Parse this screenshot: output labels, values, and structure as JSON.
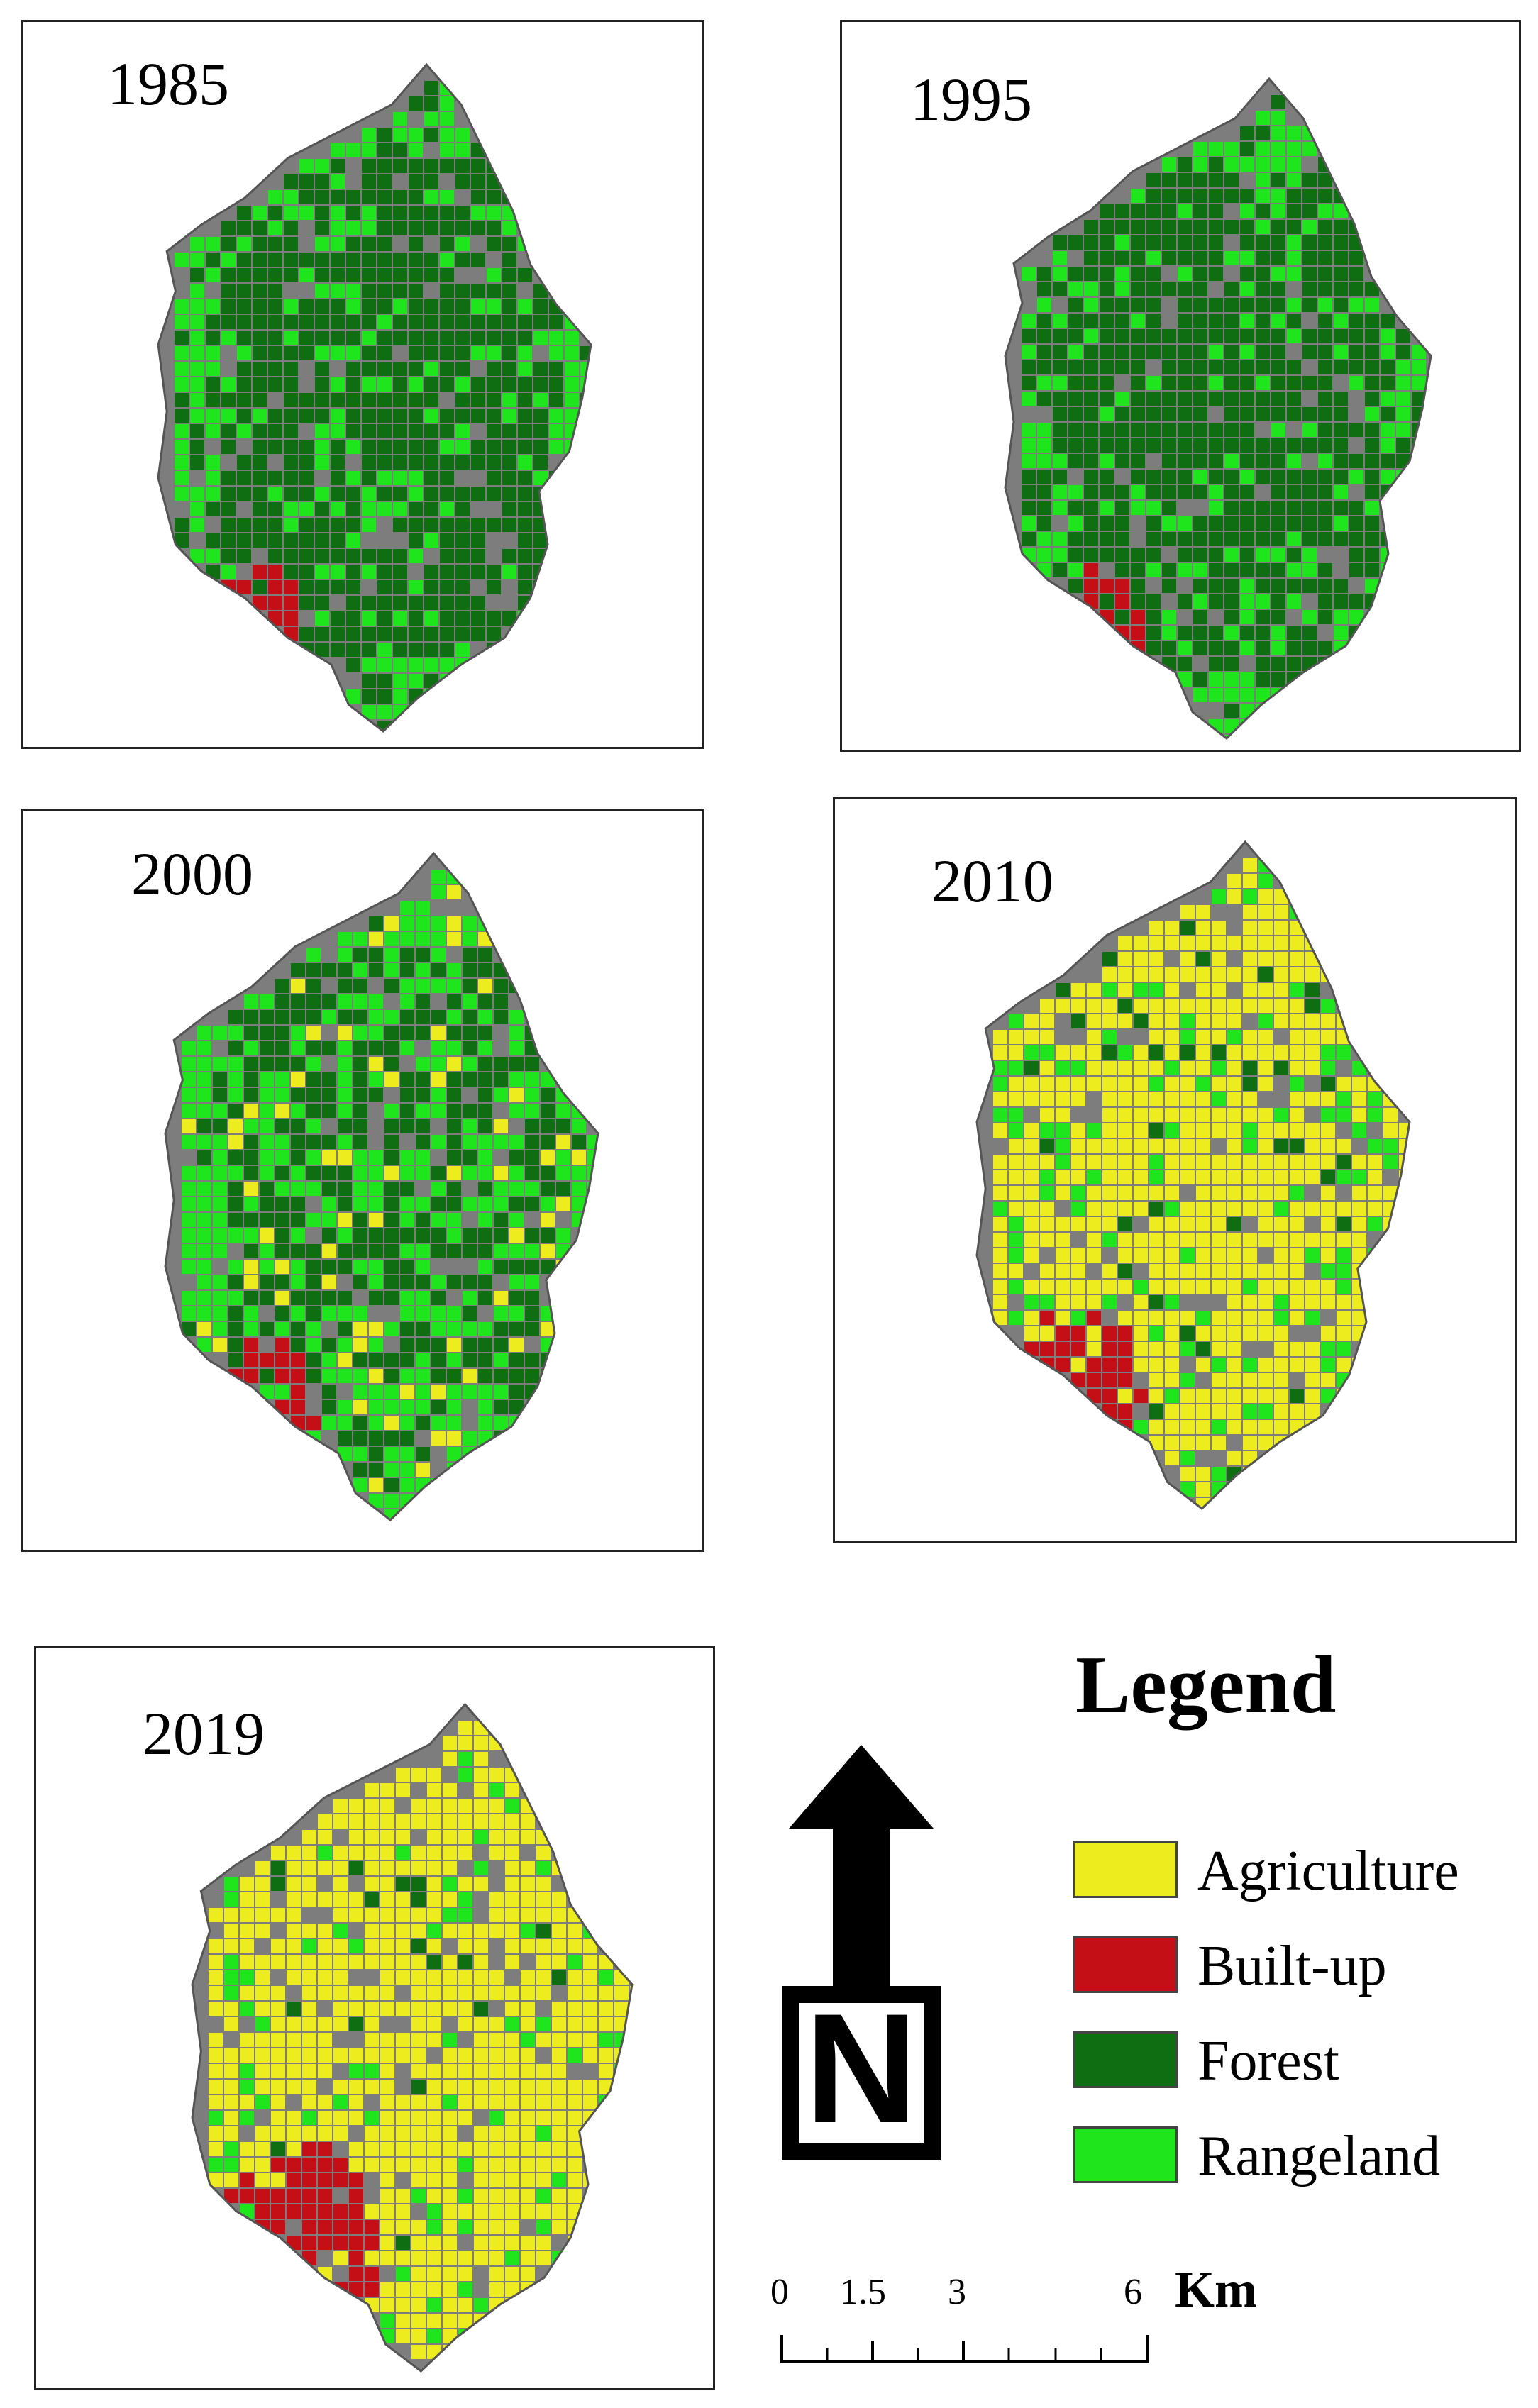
{
  "colors": {
    "agriculture": "#ecec1e",
    "built_up": "#c40f17",
    "forest": "#0f6e12",
    "rangeland": "#1fe51d",
    "gap": "#7d7d7d"
  },
  "maps": [
    {
      "year": "1985",
      "composition": {
        "forest": 0.55,
        "rangeland": 0.4,
        "built_up": 0.03,
        "agriculture": 0.0
      }
    },
    {
      "year": "1995",
      "composition": {
        "forest": 0.62,
        "rangeland": 0.34,
        "built_up": 0.03,
        "agriculture": 0.0
      }
    },
    {
      "year": "2000",
      "composition": {
        "forest": 0.3,
        "rangeland": 0.52,
        "built_up": 0.04,
        "agriculture": 0.1
      }
    },
    {
      "year": "2010",
      "composition": {
        "forest": 0.04,
        "rangeland": 0.2,
        "built_up": 0.07,
        "agriculture": 0.65
      }
    },
    {
      "year": "2019",
      "composition": {
        "forest": 0.02,
        "rangeland": 0.1,
        "built_up": 0.1,
        "agriculture": 0.7
      }
    }
  ],
  "legend": {
    "title": "Legend",
    "items": [
      {
        "label": "Agriculture",
        "color": "#ecec1e"
      },
      {
        "label": "Built-up",
        "color": "#c40f17"
      },
      {
        "label": "Forest",
        "color": "#0f6e12"
      },
      {
        "label": "Rangeland",
        "color": "#1fe51d"
      }
    ]
  },
  "north_arrow": {
    "label": "N"
  },
  "scale_bar": {
    "ticks": [
      "0",
      "1.5",
      "3",
      "6"
    ],
    "unit": "Km"
  }
}
